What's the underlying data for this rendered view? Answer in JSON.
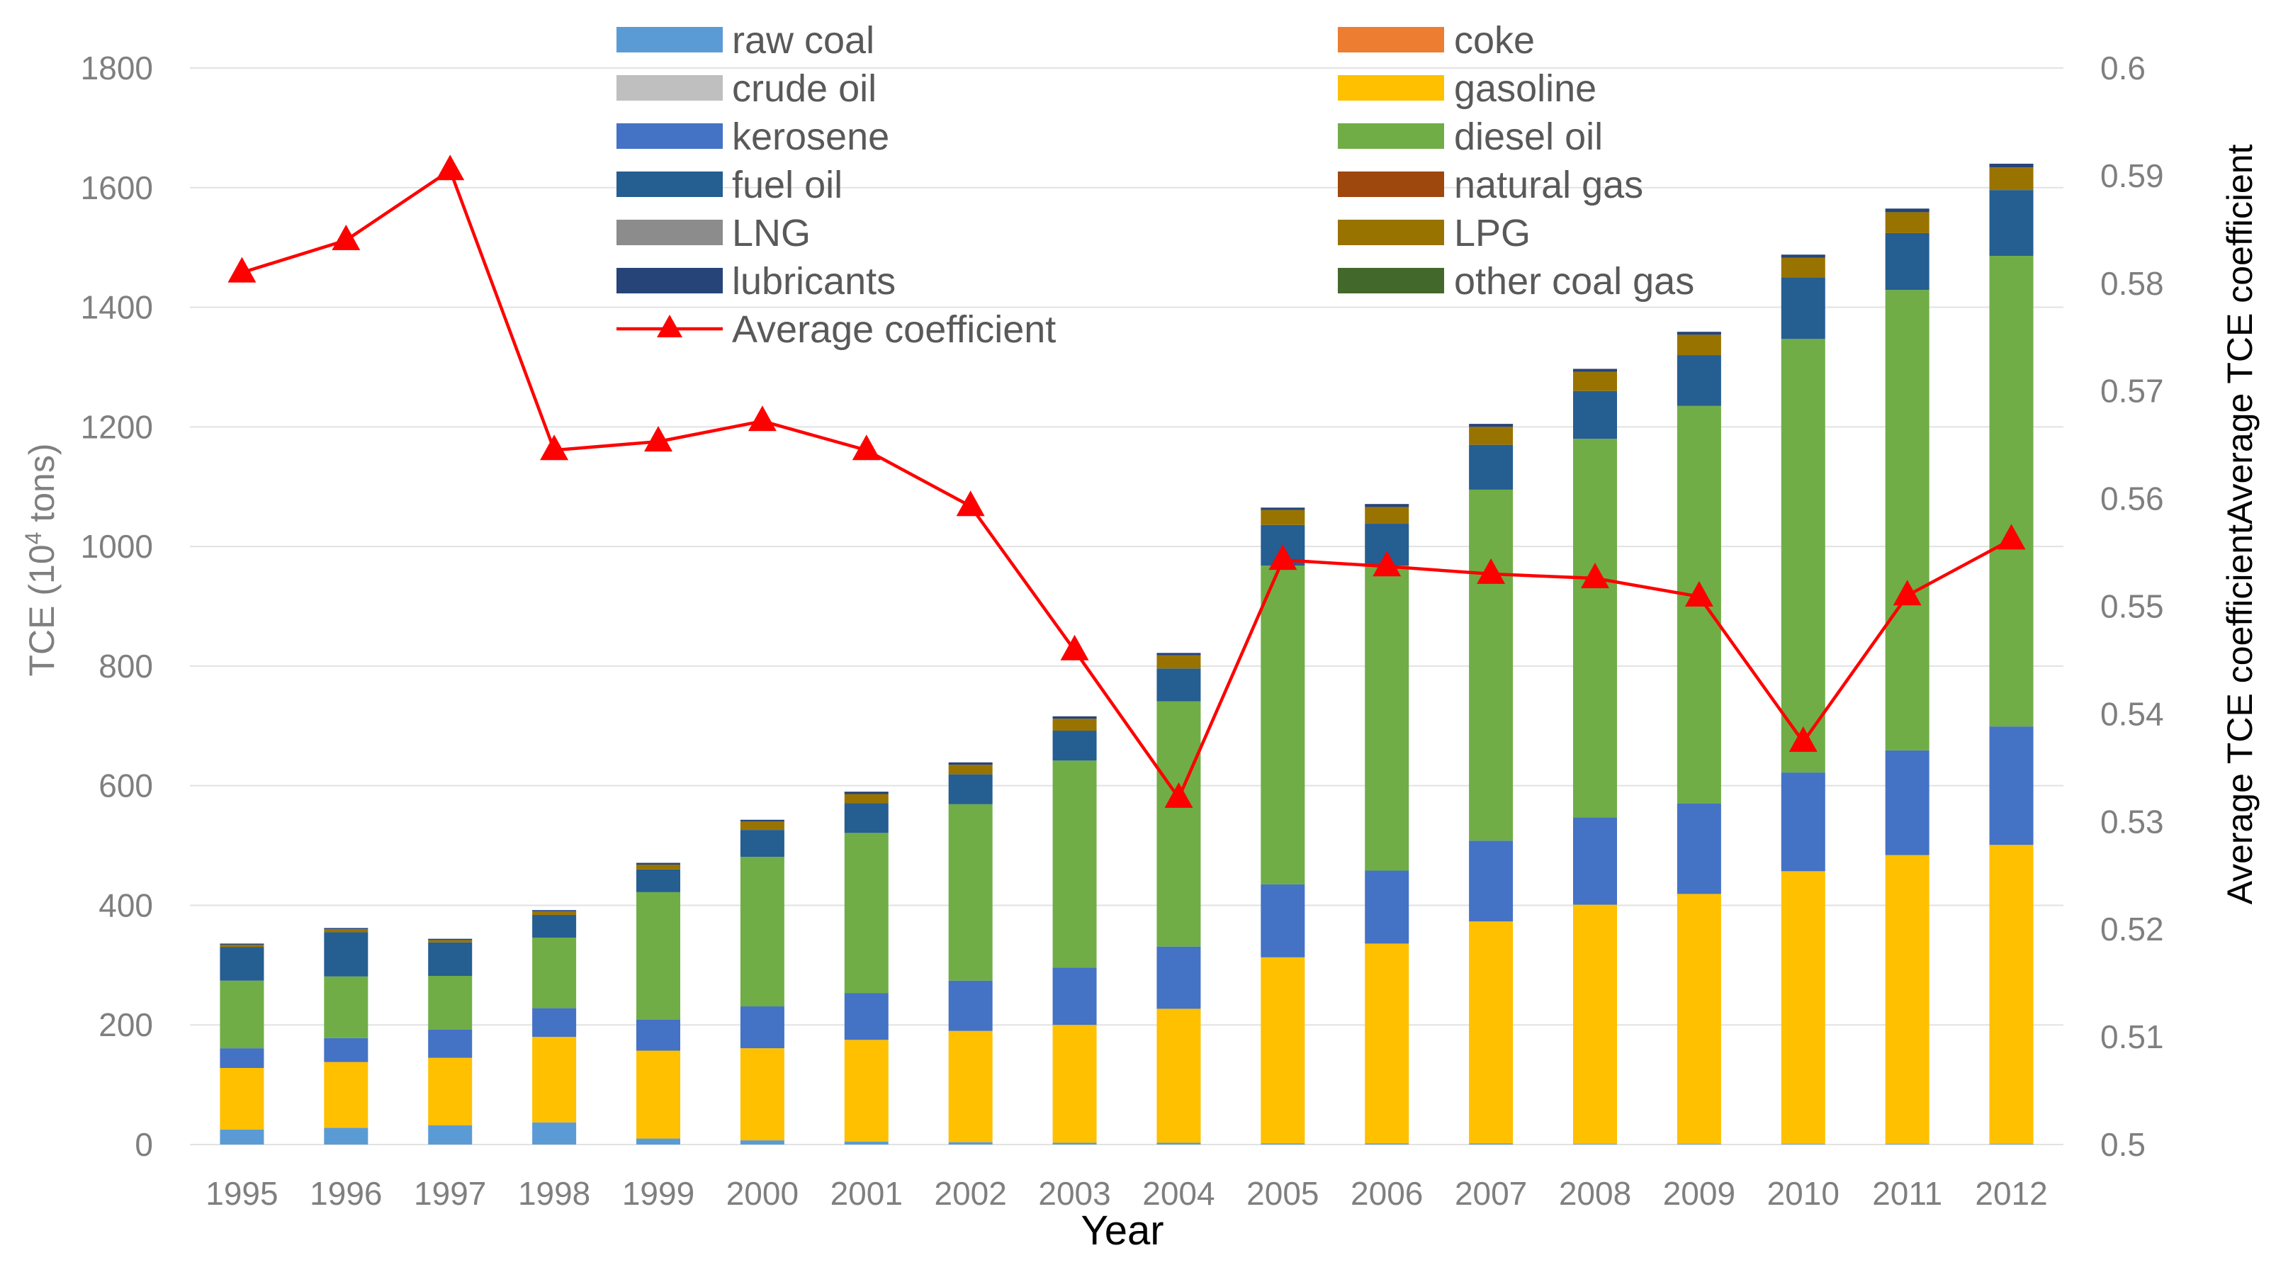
{
  "colors": {
    "raw_coal": "#5b9bd5",
    "coke": "#ed7d31",
    "crude_oil": "#bfbfbf",
    "gasoline": "#ffc000",
    "kerosene": "#4472c4",
    "diesel_oil": "#70ad47",
    "fuel_oil": "#255e91",
    "natural_gas": "#9e480e",
    "lng": "#8c8c8c",
    "lpg": "#997300",
    "lubricants": "#264478",
    "other_coal_gas": "#43682b",
    "average_coefficient": "#ff0000",
    "grid": "#e2e2e2",
    "tick_text": "#7f7f7f"
  },
  "chart_data": {
    "type": "bar",
    "stacked": true,
    "xlabel": "Year",
    "ylabel_prefix": "TCE (10",
    "ylabel_sup": "4",
    "ylabel_suffix": " tons)",
    "y2label": "Average TCE coefficientAverage TCE coefficient",
    "ylim": [
      0,
      1800
    ],
    "yticks": [
      "0",
      "200",
      "400",
      "600",
      "800",
      "1000",
      "1200",
      "1400",
      "1600",
      "1800"
    ],
    "y2lim": [
      0.5,
      0.6
    ],
    "y2ticks": [
      "0.5",
      "0.51",
      "0.52",
      "0.53",
      "0.54",
      "0.55",
      "0.56",
      "0.57",
      "0.58",
      "0.59",
      "0.6"
    ],
    "categories": [
      "1995",
      "1996",
      "1997",
      "1998",
      "1999",
      "2000",
      "2001",
      "2002",
      "2003",
      "2004",
      "2005",
      "2006",
      "2007",
      "2008",
      "2009",
      "2010",
      "2011",
      "2012"
    ],
    "series": [
      {
        "name": "raw coal",
        "key": "raw_coal",
        "values": [
          25,
          28,
          32,
          37,
          10,
          7,
          5,
          4,
          3,
          3,
          2,
          2,
          2,
          1,
          1,
          1,
          1,
          1
        ]
      },
      {
        "name": "coke",
        "key": "coke",
        "values": [
          0,
          0,
          0,
          0,
          0,
          0,
          0,
          0,
          0,
          0,
          0,
          0,
          0,
          0,
          0,
          0,
          0,
          0
        ]
      },
      {
        "name": "crude oil",
        "key": "crude_oil",
        "values": [
          0,
          0,
          0,
          0,
          0,
          0,
          0,
          0,
          0,
          0,
          0,
          0,
          0,
          0,
          0,
          0,
          0,
          0
        ]
      },
      {
        "name": "gasoline",
        "key": "gasoline",
        "values": [
          103,
          110,
          113,
          143,
          147,
          154,
          170,
          186,
          197,
          224,
          311,
          334,
          371,
          400,
          418,
          456,
          483,
          500
        ]
      },
      {
        "name": "kerosene",
        "key": "kerosene",
        "values": [
          33,
          40,
          47,
          48,
          52,
          70,
          78,
          84,
          96,
          104,
          122,
          122,
          135,
          146,
          151,
          165,
          175,
          198
        ]
      },
      {
        "name": "diesel oil",
        "key": "diesel_oil",
        "values": [
          113,
          103,
          90,
          118,
          213,
          250,
          268,
          295,
          346,
          410,
          533,
          510,
          587,
          633,
          665,
          725,
          770,
          787
        ]
      },
      {
        "name": "fuel oil",
        "key": "fuel_oil",
        "values": [
          56,
          74,
          56,
          38,
          38,
          45,
          50,
          50,
          50,
          55,
          68,
          70,
          75,
          80,
          85,
          103,
          95,
          110
        ]
      },
      {
        "name": "natural gas",
        "key": "natural_gas",
        "values": [
          0,
          0,
          0,
          0,
          0,
          0,
          0,
          0,
          0,
          0,
          0,
          0,
          0,
          0,
          0,
          0,
          0,
          0
        ]
      },
      {
        "name": "LNG",
        "key": "lng",
        "values": [
          0,
          0,
          0,
          0,
          0,
          0,
          0,
          0,
          0,
          0,
          0,
          0,
          0,
          0,
          0,
          0,
          0,
          0
        ]
      },
      {
        "name": "LPG",
        "key": "lpg",
        "values": [
          4,
          5,
          4,
          6,
          8,
          14,
          15,
          16,
          20,
          22,
          25,
          28,
          30,
          32,
          34,
          33,
          35,
          38
        ]
      },
      {
        "name": "lubricants",
        "key": "lubricants",
        "values": [
          2,
          2,
          2,
          2,
          3,
          3,
          4,
          4,
          4,
          4,
          4,
          5,
          5,
          5,
          5,
          5,
          6,
          6
        ]
      },
      {
        "name": "other coal gas",
        "key": "other_coal_gas",
        "values": [
          0,
          0,
          0,
          0,
          0,
          0,
          0,
          0,
          0,
          0,
          0,
          0,
          0,
          0,
          0,
          0,
          0,
          0
        ]
      }
    ],
    "line": {
      "name": "Average coefficient",
      "key": "average_coefficient",
      "axis": "right",
      "marker": "triangle",
      "values": [
        0.581,
        0.584,
        0.5905,
        0.5645,
        0.5653,
        0.5672,
        0.5645,
        0.5593,
        0.5459,
        0.5322,
        0.5543,
        0.5537,
        0.553,
        0.5526,
        0.5509,
        0.5374,
        0.551,
        0.5562
      ]
    },
    "legend": {
      "placement": "top",
      "left_column": [
        "raw coal",
        "crude oil",
        "kerosene",
        "fuel oil",
        "LNG",
        "lubricants",
        "Average coefficient"
      ],
      "right_column": [
        "coke",
        "gasoline",
        "diesel oil",
        "natural gas",
        "LPG",
        "other coal gas"
      ]
    }
  }
}
